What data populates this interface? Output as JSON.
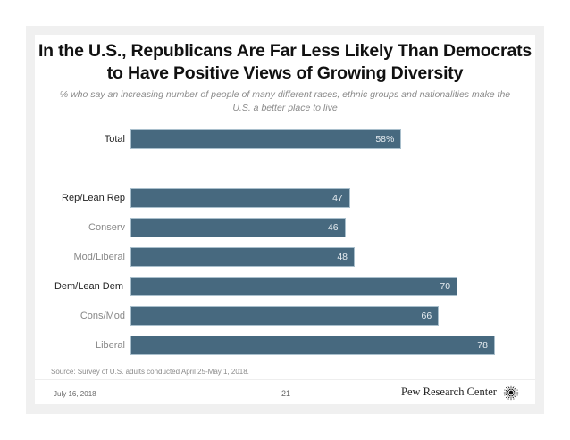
{
  "slide": {
    "title_line1": "In the U.S., Republicans Are Far Less Likely Than Democrats",
    "title_line2": "to Have Positive Views of Growing Diversity",
    "subtitle_line1": "% who say an increasing number of people of many different races, ethnic groups and nationalities make the",
    "subtitle_line2": "U.S. a better place to live",
    "source": "Source: Survey of U.S. adults conducted April 25-May 1, 2018.",
    "date": "July 16, 2018",
    "page_number": "21",
    "brand": "Pew Research Center",
    "logo_icon": "pew-sunburst-icon"
  },
  "chart_data": {
    "type": "bar",
    "orientation": "horizontal",
    "title": "In the U.S., Republicans Are Far Less Likely Than Democrats to Have Positive Views of Growing Diversity",
    "subtitle": "% who say an increasing number of people of many different races, ethnic groups and nationalities make the U.S. a better place to live",
    "xlabel": "",
    "ylabel": "",
    "xlim": [
      0,
      100
    ],
    "grid": false,
    "legend": "none",
    "bar_color": "#47697f",
    "categories": [
      "Total",
      "Rep/Lean Rep",
      "Conserv",
      "Mod/Liberal",
      "Dem/Lean Dem",
      "Cons/Mod",
      "Liberal"
    ],
    "category_level": [
      "main",
      "main",
      "sub",
      "sub",
      "main",
      "sub",
      "sub"
    ],
    "values": [
      58,
      47,
      46,
      48,
      70,
      66,
      78
    ],
    "data_labels": [
      "58%",
      "47",
      "46",
      "48",
      "70",
      "66",
      "78"
    ]
  }
}
